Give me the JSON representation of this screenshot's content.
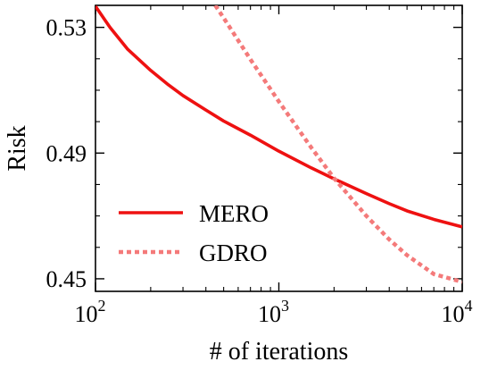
{
  "chart_data": {
    "type": "line",
    "title": "",
    "xlabel": "# of iterations",
    "ylabel": "Risk",
    "xscale": "log",
    "xlim": [
      100,
      10000
    ],
    "ylim": [
      0.446,
      0.537
    ],
    "grid": false,
    "legend_position": "lower-left",
    "x_ticks": [
      {
        "base": "10",
        "exp": "2",
        "value": 100
      },
      {
        "base": "10",
        "exp": "3",
        "value": 1000
      },
      {
        "base": "10",
        "exp": "4",
        "value": 10000
      }
    ],
    "y_ticks": [
      {
        "label": "0.53",
        "value": 0.53
      },
      {
        "label": "0.49",
        "value": 0.49
      },
      {
        "label": "0.45",
        "value": 0.45
      }
    ],
    "series": [
      {
        "name": "MERO",
        "color": "#ee1111",
        "style": "solid",
        "points": [
          [
            100,
            0.5367
          ],
          [
            120,
            0.53
          ],
          [
            150,
            0.523
          ],
          [
            200,
            0.5163
          ],
          [
            250,
            0.5117
          ],
          [
            300,
            0.5083
          ],
          [
            400,
            0.5037
          ],
          [
            500,
            0.5002
          ],
          [
            700,
            0.4957
          ],
          [
            1000,
            0.4906
          ],
          [
            1500,
            0.4853
          ],
          [
            2000,
            0.4818
          ],
          [
            3000,
            0.4771
          ],
          [
            4000,
            0.4739
          ],
          [
            5000,
            0.4716
          ],
          [
            7000,
            0.4689
          ],
          [
            10000,
            0.4665
          ]
        ]
      },
      {
        "name": "GDRO",
        "color": "#f47a7a",
        "style": "dotted",
        "points": [
          [
            450,
            0.537
          ],
          [
            500,
            0.533
          ],
          [
            700,
            0.5198
          ],
          [
            1000,
            0.5064
          ],
          [
            1500,
            0.4918
          ],
          [
            2000,
            0.482
          ],
          [
            3000,
            0.47
          ],
          [
            4000,
            0.4625
          ],
          [
            5000,
            0.4575
          ],
          [
            7000,
            0.4515
          ],
          [
            10000,
            0.449
          ]
        ]
      }
    ]
  }
}
